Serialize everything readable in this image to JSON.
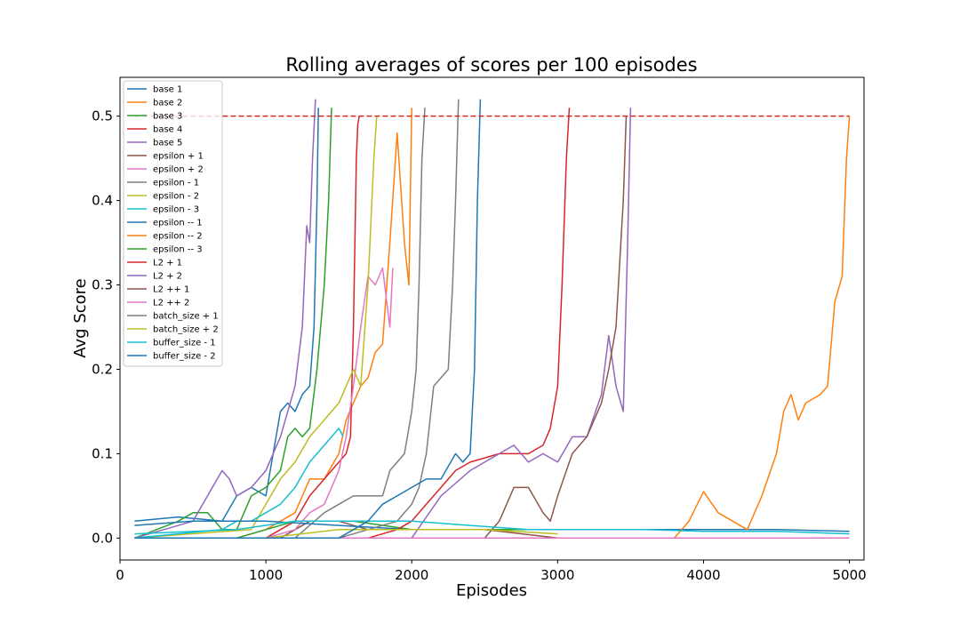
{
  "chart_data": {
    "type": "line",
    "title": "Rolling averages of scores per 100 episodes",
    "xlabel": "Episodes",
    "ylabel": "Avg Score",
    "xlim": [
      0,
      5100
    ],
    "ylim": [
      -0.026,
      0.546
    ],
    "xticks": [
      0,
      1000,
      2000,
      3000,
      4000,
      5000
    ],
    "yticks": [
      0.0,
      0.1,
      0.2,
      0.3,
      0.4,
      0.5
    ],
    "ytick_labels": [
      "0.0",
      "0.1",
      "0.2",
      "0.3",
      "0.4",
      "0.5"
    ],
    "legend_position": "top-left",
    "grid": false,
    "threshold": {
      "y": 0.5,
      "x": [
        100,
        5000
      ],
      "color": "#d62728",
      "style": "dashed"
    },
    "series": [
      {
        "name": "base 1",
        "color": "#1f77b4",
        "x": [
          100,
          400,
          700,
          800,
          900,
          1000,
          1050,
          1100,
          1150,
          1200,
          1250,
          1300,
          1330,
          1350,
          1360
        ],
        "y": [
          0.02,
          0.025,
          0.02,
          0.05,
          0.06,
          0.05,
          0.1,
          0.15,
          0.16,
          0.15,
          0.17,
          0.18,
          0.25,
          0.4,
          0.51
        ]
      },
      {
        "name": "base 2",
        "color": "#ff7f0e",
        "x": [
          100,
          800,
          1000,
          1200,
          1300,
          1400,
          1500,
          1550,
          1600,
          1650,
          1700,
          1750,
          1800,
          1850,
          1900,
          1950,
          1980,
          2000
        ],
        "y": [
          0.0,
          0.0,
          0.01,
          0.03,
          0.07,
          0.07,
          0.1,
          0.14,
          0.16,
          0.18,
          0.19,
          0.22,
          0.23,
          0.35,
          0.48,
          0.35,
          0.3,
          0.51
        ]
      },
      {
        "name": "base 3",
        "color": "#2ca02c",
        "x": [
          100,
          400,
          500,
          600,
          700,
          800,
          900,
          1000,
          1100,
          1150,
          1200,
          1250,
          1300,
          1350,
          1400,
          1430,
          1450
        ],
        "y": [
          0.0,
          0.02,
          0.03,
          0.03,
          0.01,
          0.01,
          0.05,
          0.06,
          0.08,
          0.12,
          0.13,
          0.12,
          0.13,
          0.2,
          0.3,
          0.4,
          0.51
        ]
      },
      {
        "name": "base 4",
        "color": "#d62728",
        "x": [
          100,
          1000,
          1200,
          1300,
          1400,
          1450,
          1500,
          1550,
          1580,
          1600,
          1620,
          1630,
          1640
        ],
        "y": [
          0.0,
          0.0,
          0.02,
          0.05,
          0.07,
          0.08,
          0.09,
          0.1,
          0.12,
          0.25,
          0.45,
          0.49,
          0.5
        ]
      },
      {
        "name": "base 5",
        "color": "#9467bd",
        "x": [
          100,
          500,
          700,
          750,
          800,
          900,
          1000,
          1100,
          1150,
          1200,
          1250,
          1280,
          1300,
          1320,
          1340
        ],
        "y": [
          0.0,
          0.02,
          0.08,
          0.07,
          0.05,
          0.06,
          0.08,
          0.12,
          0.15,
          0.18,
          0.25,
          0.37,
          0.35,
          0.45,
          0.52
        ]
      },
      {
        "name": "epsilon + 1",
        "color": "#8c564b",
        "x": [
          100,
          1100,
          1300,
          1500,
          1700,
          1900,
          2000,
          2100,
          2300,
          2500,
          3000,
          3300,
          3500
        ],
        "y": [
          0.0,
          0.0,
          0.02,
          0.02,
          0.01,
          0.01,
          0.01,
          0.01,
          0.01,
          0.01,
          0.0,
          0.0,
          0.0
        ]
      },
      {
        "name": "epsilon + 2",
        "color": "#e377c2",
        "x": [
          100,
          1000,
          1200,
          1300,
          1400,
          1500,
          1550,
          1600,
          1650,
          1700,
          1750,
          1800,
          1850,
          1870
        ],
        "y": [
          0.0,
          0.0,
          0.01,
          0.03,
          0.04,
          0.08,
          0.12,
          0.18,
          0.25,
          0.31,
          0.3,
          0.32,
          0.25,
          0.32
        ]
      },
      {
        "name": "epsilon - 1",
        "color": "#7f7f7f",
        "x": [
          100,
          1200,
          1400,
          1500,
          1600,
          1700,
          1800,
          1850,
          1900,
          1950,
          2000,
          2030,
          2050,
          2070,
          2090
        ],
        "y": [
          0.0,
          0.0,
          0.03,
          0.04,
          0.05,
          0.05,
          0.05,
          0.08,
          0.09,
          0.1,
          0.15,
          0.2,
          0.3,
          0.45,
          0.51
        ]
      },
      {
        "name": "epsilon - 2",
        "color": "#bcbd22",
        "x": [
          100,
          900,
          1000,
          1100,
          1200,
          1300,
          1400,
          1500,
          1600,
          1650,
          1700,
          1740,
          1760
        ],
        "y": [
          0.0,
          0.01,
          0.04,
          0.07,
          0.09,
          0.12,
          0.14,
          0.16,
          0.2,
          0.18,
          0.3,
          0.45,
          0.5
        ]
      },
      {
        "name": "epsilon - 3",
        "color": "#17becf",
        "x": [
          100,
          700,
          800,
          900,
          1000,
          1100,
          1200,
          1300,
          1400,
          1450,
          1500,
          1530
        ],
        "y": [
          0.0,
          0.01,
          0.02,
          0.02,
          0.03,
          0.04,
          0.06,
          0.09,
          0.11,
          0.12,
          0.13,
          0.12
        ]
      },
      {
        "name": "epsilon -- 1",
        "color": "#1f77b4",
        "x": [
          100,
          500,
          1000,
          1500,
          2000,
          2500,
          3000,
          3500,
          4000,
          4500,
          5000
        ],
        "y": [
          0.015,
          0.02,
          0.02,
          0.015,
          0.01,
          0.01,
          0.01,
          0.01,
          0.01,
          0.01,
          0.008
        ]
      },
      {
        "name": "epsilon -- 2",
        "color": "#ff7f0e",
        "x": [
          100,
          3800,
          3900,
          4000,
          4100,
          4200,
          4300,
          4400,
          4500,
          4550,
          4600,
          4650,
          4700,
          4800,
          4850,
          4900,
          4950,
          4980,
          5000
        ],
        "y": [
          0.0,
          0.0,
          0.02,
          0.055,
          0.03,
          0.02,
          0.01,
          0.05,
          0.1,
          0.15,
          0.17,
          0.14,
          0.16,
          0.17,
          0.18,
          0.28,
          0.31,
          0.45,
          0.5
        ]
      },
      {
        "name": "epsilon -- 3",
        "color": "#2ca02c",
        "x": [
          100,
          800,
          1200,
          1600,
          2000,
          2400,
          2800,
          3000
        ],
        "y": [
          0.0,
          0.0,
          0.02,
          0.02,
          0.01,
          0.01,
          0.01,
          0.01
        ]
      },
      {
        "name": "L2 + 1",
        "color": "#d62728",
        "x": [
          100,
          1700,
          1900,
          2000,
          2100,
          2200,
          2300,
          2400,
          2500,
          2600,
          2700,
          2800,
          2900,
          2950,
          3000,
          3030,
          3060,
          3080
        ],
        "y": [
          0.0,
          0.0,
          0.01,
          0.02,
          0.04,
          0.06,
          0.08,
          0.09,
          0.095,
          0.1,
          0.1,
          0.1,
          0.11,
          0.13,
          0.18,
          0.3,
          0.45,
          0.51
        ]
      },
      {
        "name": "L2 + 2",
        "color": "#9467bd",
        "x": [
          100,
          2000,
          2200,
          2400,
          2600,
          2700,
          2800,
          2900,
          3000,
          3100,
          3200,
          3300,
          3350,
          3400,
          3450,
          3480,
          3500
        ],
        "y": [
          0.0,
          0.0,
          0.05,
          0.08,
          0.1,
          0.11,
          0.09,
          0.1,
          0.09,
          0.12,
          0.12,
          0.17,
          0.24,
          0.18,
          0.15,
          0.35,
          0.51
        ]
      },
      {
        "name": "L2 ++ 1",
        "color": "#8c564b",
        "x": [
          100,
          2500,
          2600,
          2700,
          2800,
          2900,
          2950,
          3000,
          3100,
          3200,
          3300,
          3350,
          3400,
          3450,
          3470
        ],
        "y": [
          0.0,
          0.0,
          0.02,
          0.06,
          0.06,
          0.03,
          0.02,
          0.05,
          0.1,
          0.12,
          0.16,
          0.2,
          0.25,
          0.4,
          0.5
        ]
      },
      {
        "name": "L2 ++ 2",
        "color": "#e377c2",
        "x": [
          100,
          1000,
          2000,
          3000,
          4000,
          5000
        ],
        "y": [
          0.0,
          0.0,
          0.0,
          0.0,
          0.0,
          0.0
        ]
      },
      {
        "name": "batch_size + 1",
        "color": "#7f7f7f",
        "x": [
          100,
          1500,
          1700,
          1900,
          2000,
          2050,
          2100,
          2150,
          2200,
          2250,
          2280,
          2300,
          2320
        ],
        "y": [
          0.0,
          0.0,
          0.01,
          0.02,
          0.04,
          0.06,
          0.1,
          0.18,
          0.19,
          0.2,
          0.3,
          0.4,
          0.52
        ]
      },
      {
        "name": "batch_size + 2",
        "color": "#bcbd22",
        "x": [
          100,
          1000,
          1500,
          2000,
          2500,
          3000
        ],
        "y": [
          0.0,
          0.0,
          0.01,
          0.01,
          0.01,
          0.005
        ]
      },
      {
        "name": "buffer_size - 1",
        "color": "#17becf",
        "x": [
          100,
          800,
          1200,
          1600,
          2000,
          2400,
          2800,
          3200,
          3600,
          4000,
          4500,
          5000
        ],
        "y": [
          0.005,
          0.01,
          0.02,
          0.02,
          0.02,
          0.015,
          0.01,
          0.01,
          0.01,
          0.008,
          0.008,
          0.005
        ]
      },
      {
        "name": "buffer_size - 2",
        "color": "#1f77b4",
        "x": [
          100,
          1500,
          1700,
          1800,
          1900,
          2000,
          2100,
          2200,
          2300,
          2350,
          2400,
          2430,
          2450,
          2470
        ],
        "y": [
          0.0,
          0.0,
          0.02,
          0.04,
          0.05,
          0.06,
          0.07,
          0.07,
          0.1,
          0.09,
          0.1,
          0.2,
          0.4,
          0.52
        ]
      }
    ]
  }
}
